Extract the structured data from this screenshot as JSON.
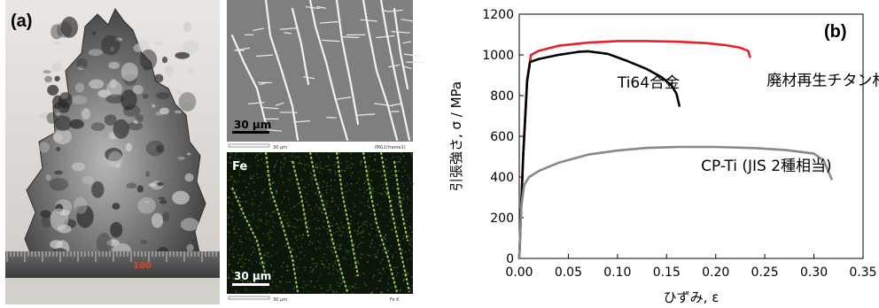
{
  "panel_a": {
    "label": "(a)",
    "ruler_label": "100",
    "sem_scale": "30 μm",
    "sem_footer_left": "30 μm",
    "sem_footer_right": "IMG1(frame1)",
    "eds_element": "Fe",
    "eds_scale": "30 μm",
    "eds_footer_left": "30 μm",
    "eds_footer_right": "Fe K"
  },
  "chart_data": {
    "type": "line",
    "panel_label": "(b)",
    "xlabel": "ひずみ, ε",
    "ylabel": "引張強さ, σ / MPa",
    "xlim": [
      0,
      0.35
    ],
    "ylim": [
      0,
      1200
    ],
    "x_ticks": [
      "0.00",
      "0.05",
      "0.10",
      "0.15",
      "0.20",
      "0.25",
      "0.30",
      "0.35"
    ],
    "y_ticks": [
      "0",
      "200",
      "400",
      "600",
      "800",
      "1000",
      "1200"
    ],
    "grid": false,
    "series": [
      {
        "name": "廃材再生チタン材",
        "color": "#e8202a",
        "x": [
          0,
          0.004,
          0.008,
          0.012,
          0.02,
          0.04,
          0.07,
          0.1,
          0.13,
          0.16,
          0.19,
          0.21,
          0.225,
          0.233,
          0.235
        ],
        "y": [
          0,
          500,
          880,
          1000,
          1020,
          1045,
          1060,
          1068,
          1068,
          1065,
          1058,
          1048,
          1035,
          1020,
          990
        ]
      },
      {
        "name": "Ti64合金",
        "color": "#000000",
        "x": [
          0,
          0.004,
          0.008,
          0.011,
          0.02,
          0.04,
          0.06,
          0.07,
          0.09,
          0.11,
          0.13,
          0.145,
          0.155,
          0.16,
          0.163
        ],
        "y": [
          0,
          500,
          870,
          965,
          980,
          1000,
          1015,
          1018,
          1005,
          970,
          930,
          890,
          850,
          810,
          750
        ]
      },
      {
        "name": "CP-Ti (JIS 2種相当)",
        "color": "#888888",
        "x": [
          0,
          0.002,
          0.005,
          0.01,
          0.02,
          0.04,
          0.07,
          0.1,
          0.13,
          0.16,
          0.2,
          0.24,
          0.27,
          0.3,
          0.31,
          0.318
        ],
        "y": [
          0,
          250,
          360,
          400,
          430,
          470,
          510,
          530,
          543,
          548,
          548,
          542,
          533,
          515,
          480,
          390
        ]
      }
    ],
    "annotations": [
      {
        "text": "廃材再生チタン材",
        "x": 0.252,
        "y": 850
      },
      {
        "text": "Ti64合金",
        "x": 0.1,
        "y": 840
      },
      {
        "text": "CP-Ti (JIS 2種相当)",
        "x": 0.185,
        "y": 430
      }
    ]
  }
}
